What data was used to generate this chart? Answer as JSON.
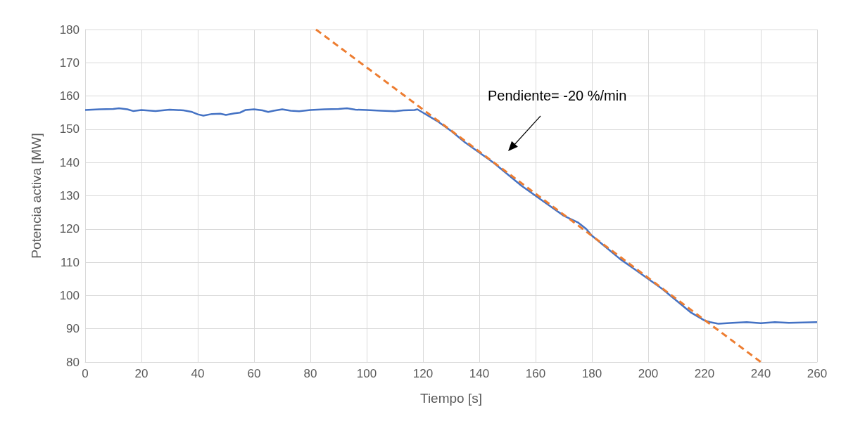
{
  "chart_data": {
    "type": "line",
    "xlabel": "Tiempo [s]",
    "ylabel": "Potencia activa [MW]",
    "xlim": [
      0,
      260
    ],
    "xticks": [
      0,
      20,
      40,
      60,
      80,
      100,
      120,
      140,
      160,
      180,
      200,
      220,
      240,
      260
    ],
    "ylim": [
      80,
      180
    ],
    "yticks": [
      80,
      90,
      100,
      110,
      120,
      130,
      140,
      150,
      160,
      170,
      180
    ],
    "grid": true,
    "marker": "none",
    "annotations": [
      "Pendiente= -20 %/min"
    ],
    "series": [
      {
        "color": "#4472c4",
        "line_style": "solid",
        "x": [
          0,
          5,
          10,
          12,
          15,
          17,
          20,
          25,
          30,
          35,
          38,
          40,
          42,
          45,
          48,
          50,
          53,
          55,
          57,
          60,
          63,
          65,
          67,
          70,
          73,
          76,
          80,
          85,
          90,
          93,
          96,
          100,
          105,
          110,
          113,
          117,
          118,
          120,
          125,
          130,
          135,
          140,
          145,
          150,
          155,
          160,
          165,
          170,
          175,
          178,
          180,
          185,
          190,
          195,
          200,
          205,
          210,
          215,
          220,
          222,
          225,
          230,
          235,
          240,
          245,
          250,
          255,
          260
        ],
        "values": [
          155.8,
          156,
          156.1,
          156.3,
          156,
          155.5,
          155.8,
          155.5,
          155.9,
          155.7,
          155.2,
          154.5,
          154.1,
          154.6,
          154.7,
          154.3,
          154.8,
          155,
          155.8,
          156,
          155.7,
          155.2,
          155.6,
          156,
          155.6,
          155.4,
          155.8,
          156,
          156.1,
          156.3,
          155.9,
          155.8,
          155.6,
          155.4,
          155.7,
          155.8,
          156,
          155,
          152.5,
          149.5,
          146,
          143,
          140,
          136.5,
          133,
          130,
          127,
          124,
          122,
          120,
          118,
          114.5,
          111,
          108,
          105,
          102,
          98.5,
          95,
          92.5,
          92,
          91.5,
          91.8,
          92,
          91.7,
          92,
          91.8,
          91.9,
          92
        ]
      },
      {
        "color": "#ed7d31",
        "line_style": "dashed",
        "x": [
          82,
          240
        ],
        "values": [
          180,
          80
        ]
      }
    ]
  }
}
